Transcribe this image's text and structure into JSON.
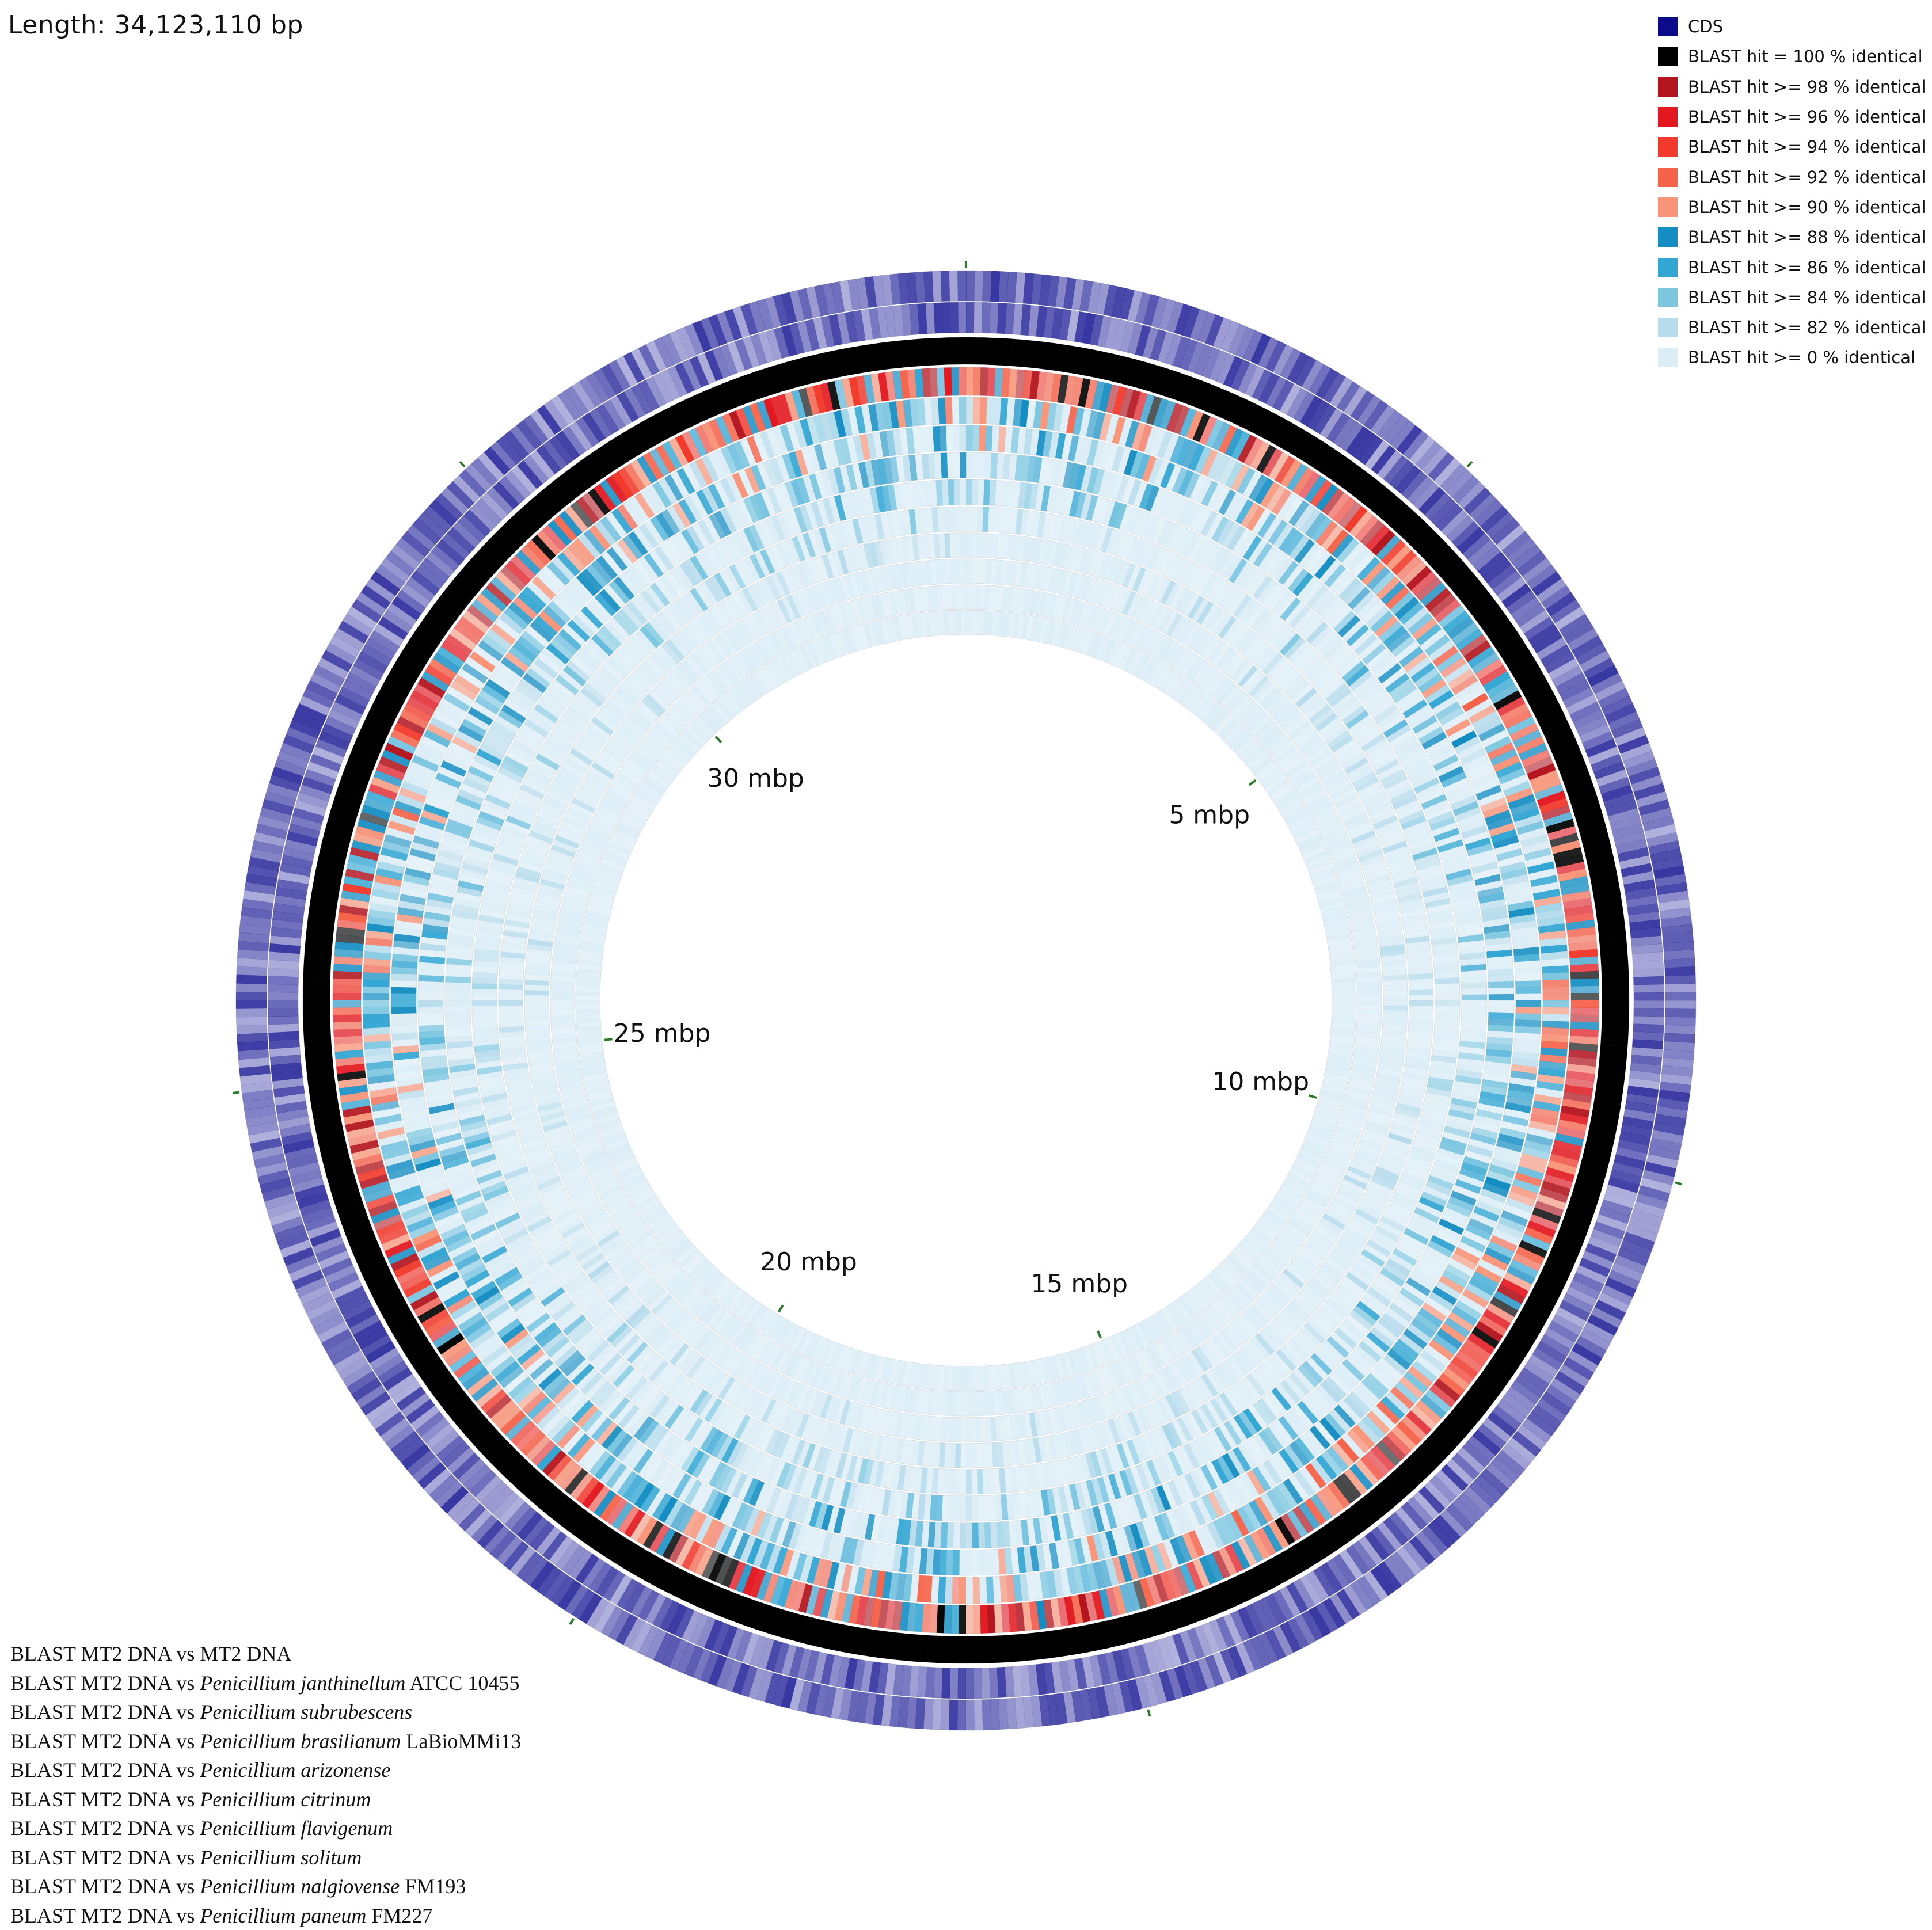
{
  "title": "Length: 34,123,110 bp",
  "genome_length_bp": 34123110,
  "scale_labels": [
    {
      "label": "5 mbp",
      "value_mbp": 5
    },
    {
      "label": "10 mbp",
      "value_mbp": 10
    },
    {
      "label": "15 mbp",
      "value_mbp": 15
    },
    {
      "label": "20 mbp",
      "value_mbp": 20
    },
    {
      "label": "25 mbp",
      "value_mbp": 25
    },
    {
      "label": "30 mbp",
      "value_mbp": 30
    }
  ],
  "legend": [
    {
      "label": "CDS",
      "color": "#0b0b8c",
      "icon": "cds-swatch"
    },
    {
      "label": "BLAST hit = 100 % identical",
      "color": "#000000",
      "icon": "swatch"
    },
    {
      "label": "BLAST hit >= 98 % identical",
      "color": "#b3141d",
      "icon": "swatch"
    },
    {
      "label": "BLAST hit >= 96 % identical",
      "color": "#e3171f",
      "icon": "swatch"
    },
    {
      "label": "BLAST hit >= 94 % identical",
      "color": "#f23a2c",
      "icon": "swatch"
    },
    {
      "label": "BLAST hit >= 92 % identical",
      "color": "#f5634a",
      "icon": "swatch"
    },
    {
      "label": "BLAST hit >= 90 % identical",
      "color": "#f89478",
      "icon": "swatch"
    },
    {
      "label": "BLAST hit >= 88 % identical",
      "color": "#148dc2",
      "icon": "swatch"
    },
    {
      "label": "BLAST hit >= 86 % identical",
      "color": "#33a6d3",
      "icon": "swatch"
    },
    {
      "label": "BLAST hit >= 84 % identical",
      "color": "#7cc6e0",
      "icon": "swatch"
    },
    {
      "label": "BLAST hit >= 82 % identical",
      "color": "#b8dcec",
      "icon": "swatch"
    },
    {
      "label": "BLAST hit >= 0 % identical",
      "color": "#dcedf6",
      "icon": "swatch"
    }
  ],
  "tracks": [
    {
      "prefix": "BLAST MT2 DNA vs MT2 DNA",
      "species": "",
      "strain": ""
    },
    {
      "prefix": "BLAST MT2 DNA vs ",
      "species": "Penicillium janthinellum",
      "strain": " ATCC 10455"
    },
    {
      "prefix": "BLAST MT2 DNA vs ",
      "species": "Penicillium subrubescens",
      "strain": ""
    },
    {
      "prefix": "BLAST MT2 DNA vs ",
      "species": "Penicillium brasilianum",
      "strain": " LaBioMMi13"
    },
    {
      "prefix": "BLAST MT2 DNA vs ",
      "species": "Penicillium arizonense",
      "strain": ""
    },
    {
      "prefix": "BLAST MT2 DNA vs ",
      "species": "Penicillium citrinum",
      "strain": ""
    },
    {
      "prefix": "BLAST MT2 DNA vs ",
      "species": "Penicillium flavigenum",
      "strain": ""
    },
    {
      "prefix": "BLAST MT2 DNA vs ",
      "species": "Penicillium solitum",
      "strain": ""
    },
    {
      "prefix": "BLAST MT2 DNA vs ",
      "species": "Penicillium nalgiovense",
      "strain": " FM193"
    },
    {
      "prefix": "BLAST MT2 DNA vs ",
      "species": "Penicillium paneum",
      "strain": " FM227"
    }
  ],
  "track_similarity": [
    {
      "kind": "cds"
    },
    {
      "kind": "cds"
    },
    {
      "kind": "self",
      "mean_identity": 100
    },
    {
      "kind": "blast",
      "mean_identity": 94
    },
    {
      "kind": "blast",
      "mean_identity": 86
    },
    {
      "kind": "blast",
      "mean_identity": 84
    },
    {
      "kind": "blast",
      "mean_identity": 82
    },
    {
      "kind": "blast",
      "mean_identity": 80
    },
    {
      "kind": "blast",
      "mean_identity": 78
    },
    {
      "kind": "blast",
      "mean_identity": 77
    },
    {
      "kind": "blast",
      "mean_identity": 76
    },
    {
      "kind": "blast",
      "mean_identity": 75
    },
    {
      "kind": "blast",
      "mean_identity": 74
    }
  ]
}
